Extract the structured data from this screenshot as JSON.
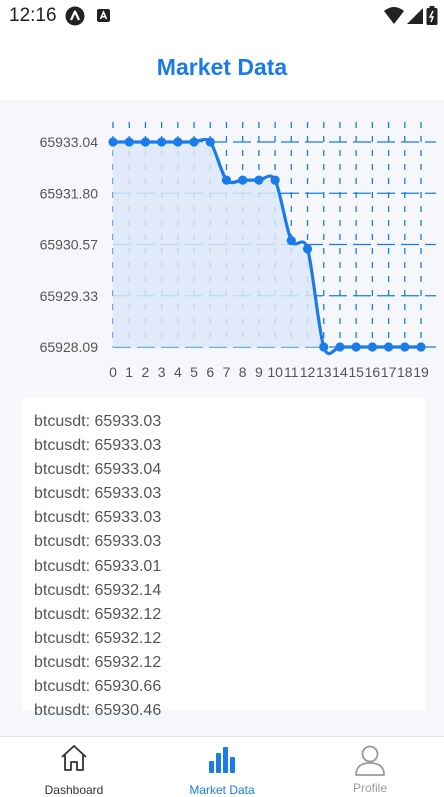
{
  "status_bar": {
    "time": "12:16",
    "left_icons": [
      "app-notification-icon",
      "a-notification-icon"
    ],
    "right_icons": [
      "wifi-icon",
      "cellular-icon",
      "battery-icon"
    ]
  },
  "header": {
    "title": "Market Data"
  },
  "colors": {
    "accent": "#1a7ce8",
    "fill": "#dde8f7",
    "grid": "#1a7ce8"
  },
  "chart_data": {
    "type": "line",
    "x": [
      0,
      1,
      2,
      3,
      4,
      5,
      6,
      7,
      8,
      9,
      10,
      11,
      12,
      13,
      14,
      15,
      16,
      17,
      18,
      19
    ],
    "values": [
      65933.04,
      65933.04,
      65933.04,
      65933.04,
      65933.04,
      65933.04,
      65933.04,
      65932.12,
      65932.12,
      65932.12,
      65932.12,
      65930.66,
      65930.46,
      65928.09,
      65928.09,
      65928.09,
      65928.09,
      65928.09,
      65928.09,
      65928.09
    ],
    "y_ticks": [
      "65933.04",
      "65931.80",
      "65930.57",
      "65929.33",
      "65928.09"
    ],
    "ylim": [
      65928.09,
      65933.04
    ],
    "area_fill": true,
    "grid": true
  },
  "ticker": {
    "items": [
      "btcusdt: 65933.03",
      "btcusdt: 65933.03",
      "btcusdt: 65933.04",
      "btcusdt: 65933.03",
      "btcusdt: 65933.03",
      "btcusdt: 65933.03",
      "btcusdt: 65933.01",
      "btcusdt: 65932.14",
      "btcusdt: 65932.12",
      "btcusdt: 65932.12",
      "btcusdt: 65932.12",
      "btcusdt: 65930.66",
      "btcusdt: 65930.46"
    ]
  },
  "tabs": [
    {
      "label": "Dashboard",
      "icon": "home-icon"
    },
    {
      "label": "Market Data",
      "icon": "bar-chart-icon"
    },
    {
      "label": "Profile",
      "icon": "user-icon"
    }
  ]
}
